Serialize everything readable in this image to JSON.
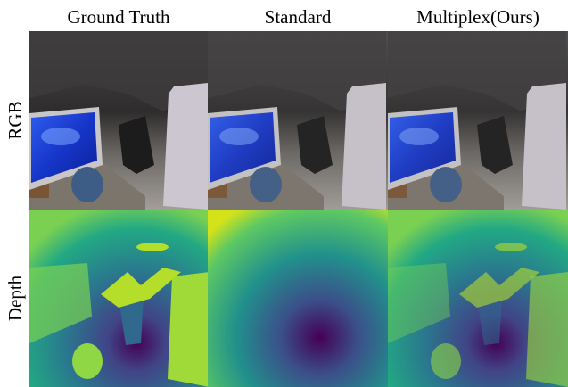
{
  "columns": [
    "Ground Truth",
    "Standard",
    "Multiplex(Ours)"
  ],
  "rows": [
    "RGB",
    "Depth"
  ]
}
